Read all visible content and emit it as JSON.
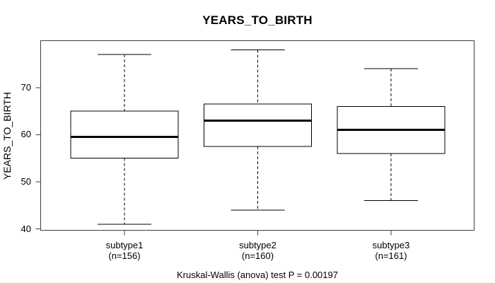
{
  "chart_data": {
    "type": "boxplot",
    "title": "YEARS_TO_BIRTH",
    "xlabel": "",
    "ylabel": "YEARS_TO_BIRTH",
    "ylim": [
      39.7,
      79.95
    ],
    "yticks": [
      40,
      50,
      60,
      70
    ],
    "grid": false,
    "legend": null,
    "annotation": "Kruskal-Wallis (anova) test P = 0.00197",
    "groups": [
      {
        "label": "subtype1",
        "count_label": "(n=156)",
        "n": 156,
        "whisker_low": 41,
        "q1": 55,
        "median": 59.5,
        "q3": 65,
        "whisker_high": 77
      },
      {
        "label": "subtype2",
        "count_label": "(n=160)",
        "n": 160,
        "whisker_low": 44,
        "q1": 57.5,
        "median": 63,
        "q3": 66.5,
        "whisker_high": 78
      },
      {
        "label": "subtype3",
        "count_label": "(n=161)",
        "n": 161,
        "whisker_low": 46,
        "q1": 56,
        "median": 61,
        "q3": 66,
        "whisker_high": 74
      }
    ],
    "colors": {
      "box_fill": "#ffffff",
      "line": "#000000",
      "frame": "#3f3f3f",
      "text": "#000000"
    }
  }
}
